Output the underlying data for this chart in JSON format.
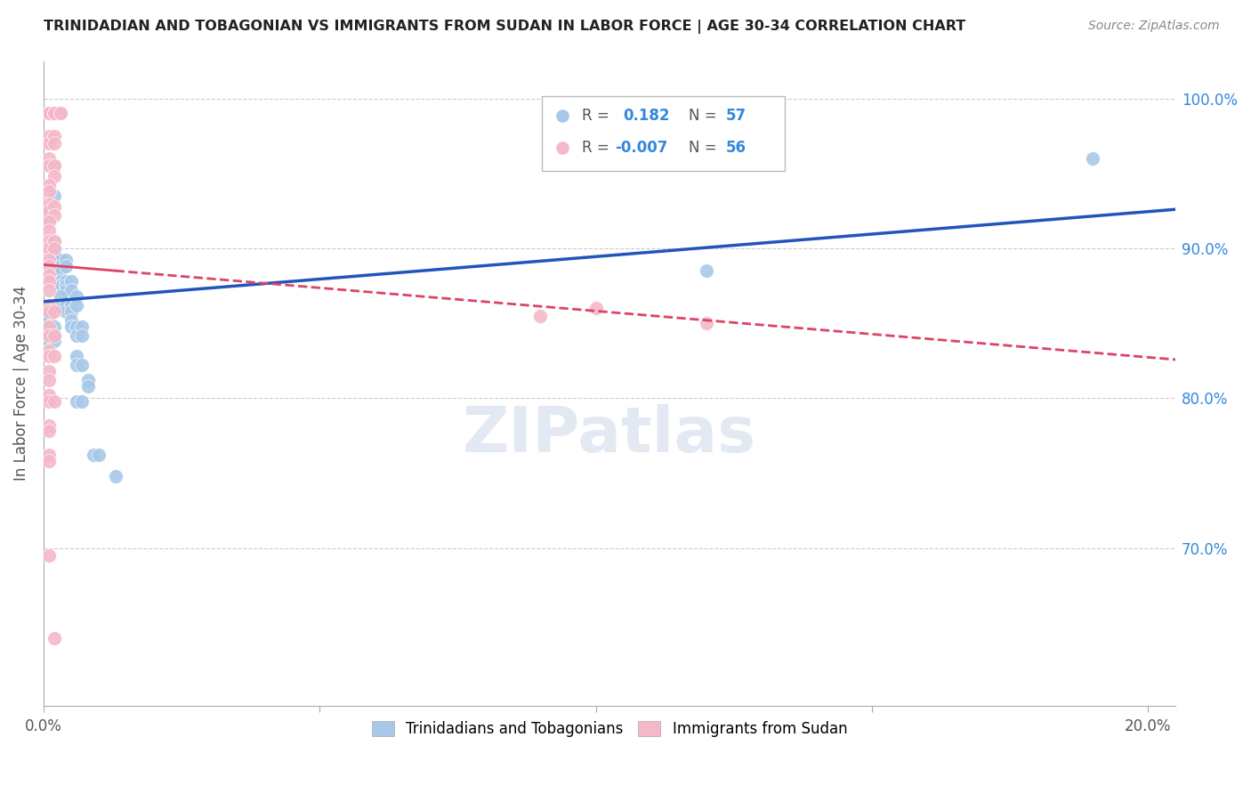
{
  "title": "TRINIDADIAN AND TOBAGONIAN VS IMMIGRANTS FROM SUDAN IN LABOR FORCE | AGE 30-34 CORRELATION CHART",
  "source": "Source: ZipAtlas.com",
  "ylabel": "In Labor Force | Age 30-34",
  "legend_blue_r": "0.182",
  "legend_blue_n": "57",
  "legend_pink_r": "-0.007",
  "legend_pink_n": "56",
  "blue_color": "#a8c8e8",
  "pink_color": "#f4b8c8",
  "blue_line_color": "#2255bb",
  "pink_line_color": "#dd4466",
  "watermark": "ZIPatlas",
  "blue_points": [
    [
      0.001,
      0.99
    ],
    [
      0.001,
      0.99
    ],
    [
      0.001,
      0.99
    ],
    [
      0.002,
      0.955
    ],
    [
      0.002,
      0.935
    ],
    [
      0.001,
      0.925
    ],
    [
      0.001,
      0.92
    ],
    [
      0.002,
      0.905
    ],
    [
      0.002,
      0.9
    ],
    [
      0.002,
      0.898
    ],
    [
      0.002,
      0.892
    ],
    [
      0.002,
      0.888
    ],
    [
      0.003,
      0.892
    ],
    [
      0.003,
      0.888
    ],
    [
      0.003,
      0.885
    ],
    [
      0.003,
      0.878
    ],
    [
      0.003,
      0.875
    ],
    [
      0.004,
      0.892
    ],
    [
      0.004,
      0.888
    ],
    [
      0.004,
      0.878
    ],
    [
      0.004,
      0.875
    ],
    [
      0.004,
      0.872
    ],
    [
      0.005,
      0.878
    ],
    [
      0.005,
      0.872
    ],
    [
      0.003,
      0.868
    ],
    [
      0.003,
      0.862
    ],
    [
      0.004,
      0.862
    ],
    [
      0.004,
      0.858
    ],
    [
      0.005,
      0.862
    ],
    [
      0.005,
      0.858
    ],
    [
      0.005,
      0.852
    ],
    [
      0.005,
      0.848
    ],
    [
      0.006,
      0.868
    ],
    [
      0.006,
      0.862
    ],
    [
      0.001,
      0.858
    ],
    [
      0.001,
      0.855
    ],
    [
      0.001,
      0.852
    ],
    [
      0.001,
      0.848
    ],
    [
      0.001,
      0.842
    ],
    [
      0.001,
      0.838
    ],
    [
      0.002,
      0.848
    ],
    [
      0.002,
      0.842
    ],
    [
      0.002,
      0.838
    ],
    [
      0.006,
      0.848
    ],
    [
      0.006,
      0.842
    ],
    [
      0.007,
      0.848
    ],
    [
      0.007,
      0.842
    ],
    [
      0.006,
      0.828
    ],
    [
      0.006,
      0.822
    ],
    [
      0.007,
      0.822
    ],
    [
      0.008,
      0.812
    ],
    [
      0.008,
      0.808
    ],
    [
      0.006,
      0.798
    ],
    [
      0.007,
      0.798
    ],
    [
      0.009,
      0.762
    ],
    [
      0.01,
      0.762
    ],
    [
      0.013,
      0.748
    ],
    [
      0.19,
      0.96
    ],
    [
      0.12,
      0.885
    ]
  ],
  "pink_points": [
    [
      0.001,
      0.99
    ],
    [
      0.001,
      0.99
    ],
    [
      0.001,
      0.99
    ],
    [
      0.001,
      0.975
    ],
    [
      0.001,
      0.97
    ],
    [
      0.002,
      0.99
    ],
    [
      0.002,
      0.99
    ],
    [
      0.002,
      0.99
    ],
    [
      0.002,
      0.975
    ],
    [
      0.002,
      0.97
    ],
    [
      0.003,
      0.99
    ],
    [
      0.003,
      0.99
    ],
    [
      0.001,
      0.96
    ],
    [
      0.001,
      0.955
    ],
    [
      0.002,
      0.955
    ],
    [
      0.002,
      0.948
    ],
    [
      0.001,
      0.942
    ],
    [
      0.001,
      0.938
    ],
    [
      0.001,
      0.93
    ],
    [
      0.001,
      0.925
    ],
    [
      0.002,
      0.928
    ],
    [
      0.002,
      0.922
    ],
    [
      0.001,
      0.918
    ],
    [
      0.001,
      0.912
    ],
    [
      0.001,
      0.905
    ],
    [
      0.001,
      0.9
    ],
    [
      0.002,
      0.905
    ],
    [
      0.002,
      0.9
    ],
    [
      0.001,
      0.892
    ],
    [
      0.001,
      0.888
    ],
    [
      0.001,
      0.882
    ],
    [
      0.001,
      0.878
    ],
    [
      0.001,
      0.872
    ],
    [
      0.001,
      0.862
    ],
    [
      0.001,
      0.858
    ],
    [
      0.002,
      0.858
    ],
    [
      0.001,
      0.848
    ],
    [
      0.001,
      0.842
    ],
    [
      0.002,
      0.842
    ],
    [
      0.001,
      0.832
    ],
    [
      0.001,
      0.828
    ],
    [
      0.002,
      0.828
    ],
    [
      0.001,
      0.818
    ],
    [
      0.001,
      0.812
    ],
    [
      0.001,
      0.802
    ],
    [
      0.001,
      0.798
    ],
    [
      0.002,
      0.798
    ],
    [
      0.001,
      0.782
    ],
    [
      0.001,
      0.778
    ],
    [
      0.001,
      0.762
    ],
    [
      0.001,
      0.758
    ],
    [
      0.002,
      0.64
    ],
    [
      0.001,
      0.695
    ],
    [
      0.09,
      0.855
    ],
    [
      0.1,
      0.86
    ],
    [
      0.12,
      0.85
    ]
  ],
  "xlim": [
    0.0,
    0.205
  ],
  "ylim": [
    0.595,
    1.025
  ],
  "xticks": [
    0.0,
    0.05,
    0.1,
    0.15,
    0.2
  ],
  "xtick_labels": [
    "0.0%",
    "",
    "",
    "",
    "20.0%"
  ],
  "ytick_vals": [
    0.7,
    0.8,
    0.9,
    1.0
  ],
  "ytick_labels": [
    "70.0%",
    "80.0%",
    "90.0%",
    "100.0%"
  ]
}
